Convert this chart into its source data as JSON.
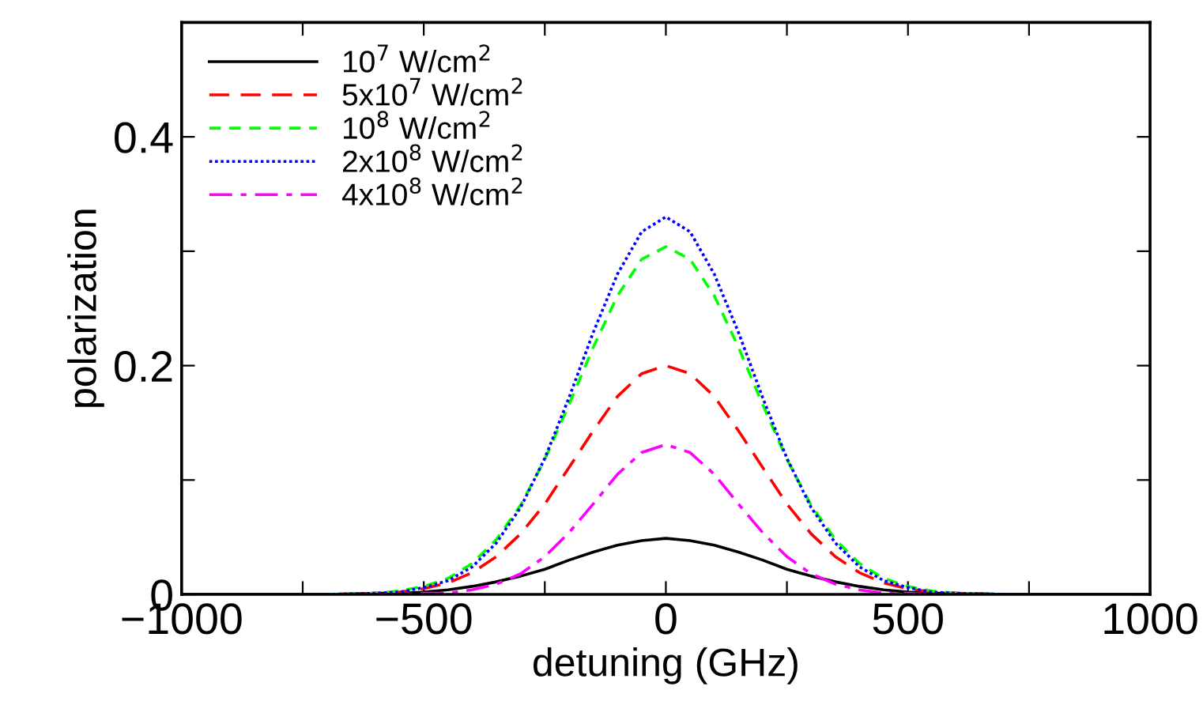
{
  "chart_data": {
    "type": "line",
    "xlabel": "detuning (GHz)",
    "ylabel": "polarization",
    "x": [
      -1000,
      -800,
      -700,
      -600,
      -550,
      -500,
      -450,
      -400,
      -350,
      -300,
      -250,
      -200,
      -150,
      -100,
      -50,
      0,
      50,
      100,
      150,
      200,
      250,
      300,
      350,
      400,
      450,
      500,
      550,
      600,
      700,
      800,
      1000
    ],
    "series": [
      {
        "name": "10$^{7}$ W/cm$^{2}$",
        "color": "#000000",
        "line_style": "solid",
        "values": [
          0,
          0,
          0,
          0.001,
          0.001,
          0.002,
          0.004,
          0.007,
          0.011,
          0.016,
          0.022,
          0.03,
          0.037,
          0.043,
          0.047,
          0.049,
          0.047,
          0.043,
          0.037,
          0.03,
          0.022,
          0.016,
          0.011,
          0.007,
          0.004,
          0.002,
          0.001,
          0.001,
          0,
          0,
          0
        ]
      },
      {
        "name": "5x10$^{7}$ W/cm$^{2}$",
        "color": "#ff0000",
        "line_style": "dashed",
        "values": [
          null,
          null,
          0,
          0.001,
          0.002,
          0.005,
          0.01,
          0.019,
          0.033,
          0.053,
          0.079,
          0.111,
          0.143,
          0.173,
          0.193,
          0.2,
          0.193,
          0.173,
          0.143,
          0.111,
          0.079,
          0.053,
          0.033,
          0.019,
          0.01,
          0.005,
          0.002,
          0.001,
          0,
          null,
          null
        ]
      },
      {
        "name": "10$^{8}$ W/cm$^{2}$",
        "color": "#00ff00",
        "line_style": "dashed",
        "values": [
          null,
          null,
          0,
          0.001,
          0.003,
          0.007,
          0.014,
          0.027,
          0.048,
          0.078,
          0.118,
          0.166,
          0.216,
          0.261,
          0.293,
          0.304,
          0.293,
          0.261,
          0.216,
          0.166,
          0.118,
          0.078,
          0.048,
          0.027,
          0.014,
          0.007,
          0.003,
          0.001,
          0,
          null,
          null
        ]
      },
      {
        "name": "2x10$^{8}$ W/cm$^{2}$",
        "color": "#0000ff",
        "line_style": "dotted",
        "values": [
          null,
          null,
          0,
          0.001,
          0.002,
          0.006,
          0.012,
          0.024,
          0.045,
          0.076,
          0.119,
          0.172,
          0.229,
          0.28,
          0.317,
          0.33,
          0.317,
          0.28,
          0.229,
          0.172,
          0.119,
          0.076,
          0.045,
          0.024,
          0.012,
          0.006,
          0.002,
          0.001,
          0,
          null,
          null
        ]
      },
      {
        "name": "4x10$^{8}$ W/cm$^{2}$",
        "color": "#ff00ff",
        "line_style": "dashdot",
        "values": [
          null,
          null,
          null,
          0,
          0,
          0.001,
          0.001,
          0.004,
          0.009,
          0.018,
          0.033,
          0.054,
          0.079,
          0.105,
          0.124,
          0.131,
          0.124,
          0.105,
          0.079,
          0.054,
          0.033,
          0.018,
          0.009,
          0.004,
          0.001,
          0.001,
          0,
          0,
          null,
          null,
          null
        ]
      }
    ],
    "xlim": [
      -1000,
      1000
    ],
    "ylim": [
      0,
      0.5
    ],
    "xticks": [
      {
        "value": -1000,
        "label": "−1000"
      },
      {
        "value": -750,
        "label": null
      },
      {
        "value": -500,
        "label": "−500"
      },
      {
        "value": -250,
        "label": null
      },
      0,
      {
        "value": 250,
        "label": null
      },
      500,
      {
        "value": 750,
        "label": null
      },
      1000
    ],
    "yticks": [
      0,
      {
        "value": 0.1,
        "label": null
      },
      0.2,
      {
        "value": 0.3,
        "label": null
      },
      0.4
    ],
    "grid": false,
    "legend": "top left",
    "marker": "none"
  }
}
